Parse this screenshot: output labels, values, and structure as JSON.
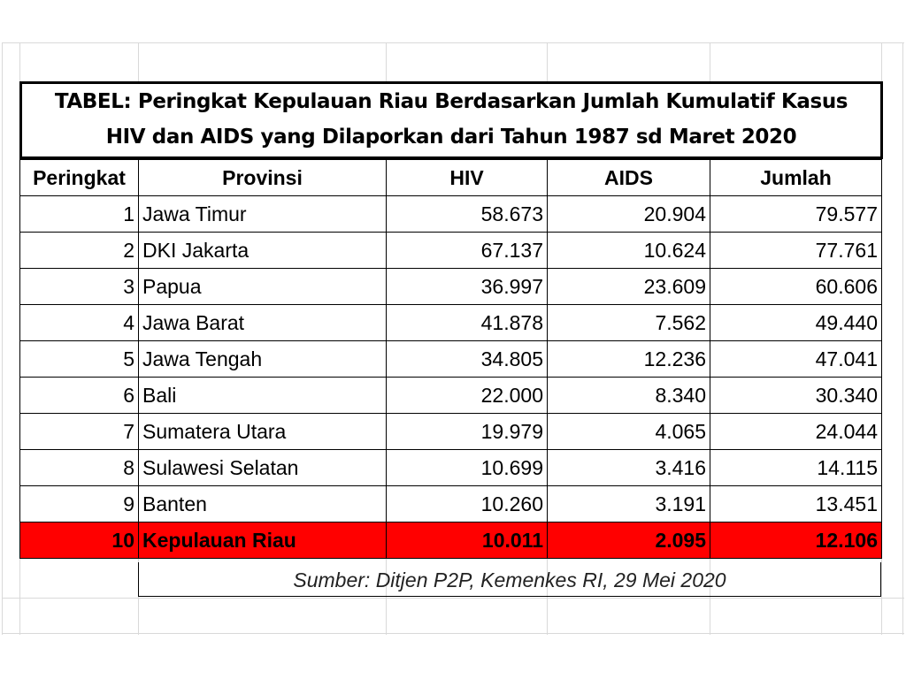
{
  "title": {
    "line1": "TABEL: Peringkat Kepulauan Riau Berdasarkan Jumlah Kumulatif Kasus",
    "line2": "HIV dan AIDS yang Dilaporkan dari Tahun 1987 sd Maret 2020"
  },
  "headers": [
    "Peringkat",
    "Provinsi",
    "HIV",
    "AIDS",
    "Jumlah"
  ],
  "rows": [
    {
      "rank": "1",
      "province": "Jawa Timur",
      "hiv": "58.673",
      "aids": "20.904",
      "total": "79.577"
    },
    {
      "rank": "2",
      "province": "DKI Jakarta",
      "hiv": "67.137",
      "aids": "10.624",
      "total": "77.761"
    },
    {
      "rank": "3",
      "province": "Papua",
      "hiv": "36.997",
      "aids": "23.609",
      "total": "60.606"
    },
    {
      "rank": "4",
      "province": "Jawa Barat",
      "hiv": "41.878",
      "aids": "7.562",
      "total": "49.440"
    },
    {
      "rank": "5",
      "province": "Jawa Tengah",
      "hiv": "34.805",
      "aids": "12.236",
      "total": "47.041"
    },
    {
      "rank": "6",
      "province": "Bali",
      "hiv": "22.000",
      "aids": "8.340",
      "total": "30.340"
    },
    {
      "rank": "7",
      "province": "Sumatera Utara",
      "hiv": "19.979",
      "aids": "4.065",
      "total": "24.044"
    },
    {
      "rank": "8",
      "province": "Sulawesi Selatan",
      "hiv": "10.699",
      "aids": "3.416",
      "total": "14.115"
    },
    {
      "rank": "9",
      "province": "Banten",
      "hiv": "10.260",
      "aids": "3.191",
      "total": "13.451"
    },
    {
      "rank": "10",
      "province": "Kepulauan Riau",
      "hiv": "10.011",
      "aids": "2.095",
      "total": "12.106"
    }
  ],
  "source": "Sumber: Ditjen P2P, Kemenkes RI, 29 Mei 2020",
  "colors": {
    "highlight": "#ff0000"
  }
}
